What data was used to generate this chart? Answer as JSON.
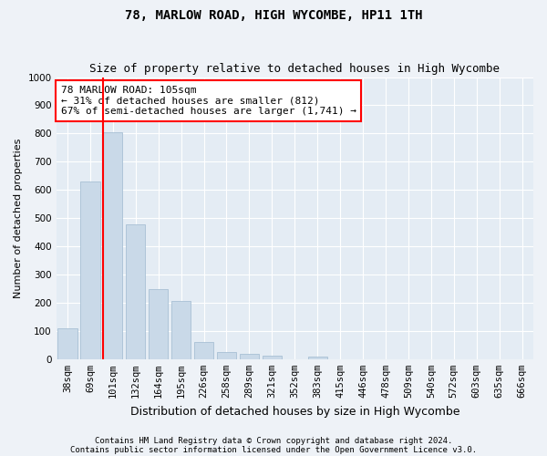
{
  "title": "78, MARLOW ROAD, HIGH WYCOMBE, HP11 1TH",
  "subtitle": "Size of property relative to detached houses in High Wycombe",
  "xlabel": "Distribution of detached houses by size in High Wycombe",
  "ylabel": "Number of detached properties",
  "categories": [
    "38sqm",
    "69sqm",
    "101sqm",
    "132sqm",
    "164sqm",
    "195sqm",
    "226sqm",
    "258sqm",
    "289sqm",
    "321sqm",
    "352sqm",
    "383sqm",
    "415sqm",
    "446sqm",
    "478sqm",
    "509sqm",
    "540sqm",
    "572sqm",
    "603sqm",
    "635sqm",
    "666sqm"
  ],
  "values": [
    108,
    630,
    805,
    478,
    248,
    205,
    62,
    25,
    18,
    12,
    0,
    10,
    0,
    0,
    0,
    0,
    0,
    0,
    0,
    0,
    0
  ],
  "bar_color": "#c9d9e8",
  "bar_edge_color": "#a8c0d4",
  "property_line_index": 2,
  "property_line_color": "red",
  "annotation_text": "78 MARLOW ROAD: 105sqm\n← 31% of detached houses are smaller (812)\n67% of semi-detached houses are larger (1,741) →",
  "annotation_box_color": "white",
  "annotation_box_edge": "red",
  "ylim": [
    0,
    1000
  ],
  "yticks": [
    0,
    100,
    200,
    300,
    400,
    500,
    600,
    700,
    800,
    900,
    1000
  ],
  "footer_line1": "Contains HM Land Registry data © Crown copyright and database right 2024.",
  "footer_line2": "Contains public sector information licensed under the Open Government Licence v3.0.",
  "background_color": "#eef2f7",
  "plot_background": "#e4ecf4",
  "grid_color": "#ffffff",
  "title_fontsize": 10,
  "subtitle_fontsize": 9,
  "ylabel_fontsize": 8,
  "xlabel_fontsize": 9,
  "tick_fontsize": 7.5,
  "footer_fontsize": 6.5
}
